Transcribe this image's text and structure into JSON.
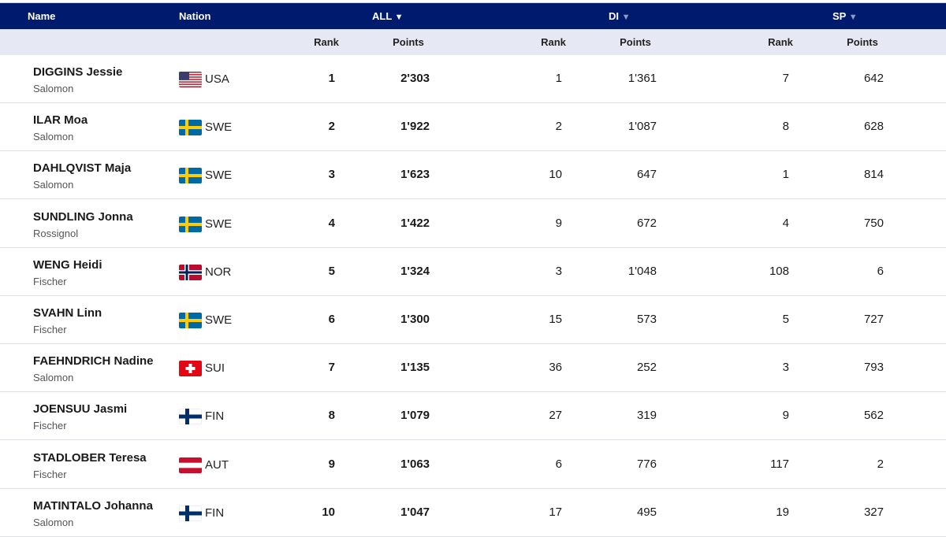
{
  "header": {
    "name": "Name",
    "nation": "Nation",
    "groups": [
      {
        "label": "ALL",
        "active": true
      },
      {
        "label": "DI",
        "active": false
      },
      {
        "label": "SP",
        "active": false
      }
    ],
    "sort_icon": "triangle-down-icon"
  },
  "subheader": {
    "rank": "Rank",
    "points": "Points"
  },
  "colors": {
    "header_bg": "#001b6e",
    "subheader_bg": "#e6e9f3"
  },
  "rows": [
    {
      "name": "DIGGINS Jessie",
      "team": "Salomon",
      "nation": "USA",
      "all_rank": "1",
      "all_points": "2'303",
      "di_rank": "1",
      "di_points": "1'361",
      "sp_rank": "7",
      "sp_points": "642"
    },
    {
      "name": "ILAR Moa",
      "team": "Salomon",
      "nation": "SWE",
      "all_rank": "2",
      "all_points": "1'922",
      "di_rank": "2",
      "di_points": "1'087",
      "sp_rank": "8",
      "sp_points": "628"
    },
    {
      "name": "DAHLQVIST Maja",
      "team": "Salomon",
      "nation": "SWE",
      "all_rank": "3",
      "all_points": "1'623",
      "di_rank": "10",
      "di_points": "647",
      "sp_rank": "1",
      "sp_points": "814"
    },
    {
      "name": "SUNDLING Jonna",
      "team": "Rossignol",
      "nation": "SWE",
      "all_rank": "4",
      "all_points": "1'422",
      "di_rank": "9",
      "di_points": "672",
      "sp_rank": "4",
      "sp_points": "750"
    },
    {
      "name": "WENG Heidi",
      "team": "Fischer",
      "nation": "NOR",
      "all_rank": "5",
      "all_points": "1'324",
      "di_rank": "3",
      "di_points": "1'048",
      "sp_rank": "108",
      "sp_points": "6"
    },
    {
      "name": "SVAHN Linn",
      "team": "Fischer",
      "nation": "SWE",
      "all_rank": "6",
      "all_points": "1'300",
      "di_rank": "15",
      "di_points": "573",
      "sp_rank": "5",
      "sp_points": "727"
    },
    {
      "name": "FAEHNDRICH Nadine",
      "team": "Salomon",
      "nation": "SUI",
      "all_rank": "7",
      "all_points": "1'135",
      "di_rank": "36",
      "di_points": "252",
      "sp_rank": "3",
      "sp_points": "793"
    },
    {
      "name": "JOENSUU Jasmi",
      "team": "Fischer",
      "nation": "FIN",
      "all_rank": "8",
      "all_points": "1'079",
      "di_rank": "27",
      "di_points": "319",
      "sp_rank": "9",
      "sp_points": "562"
    },
    {
      "name": "STADLOBER Teresa",
      "team": "Fischer",
      "nation": "AUT",
      "all_rank": "9",
      "all_points": "1'063",
      "di_rank": "6",
      "di_points": "776",
      "sp_rank": "117",
      "sp_points": "2"
    },
    {
      "name": "MATINTALO Johanna",
      "team": "Salomon",
      "nation": "FIN",
      "all_rank": "10",
      "all_points": "1'047",
      "di_rank": "17",
      "di_points": "495",
      "sp_rank": "19",
      "sp_points": "327"
    }
  ]
}
